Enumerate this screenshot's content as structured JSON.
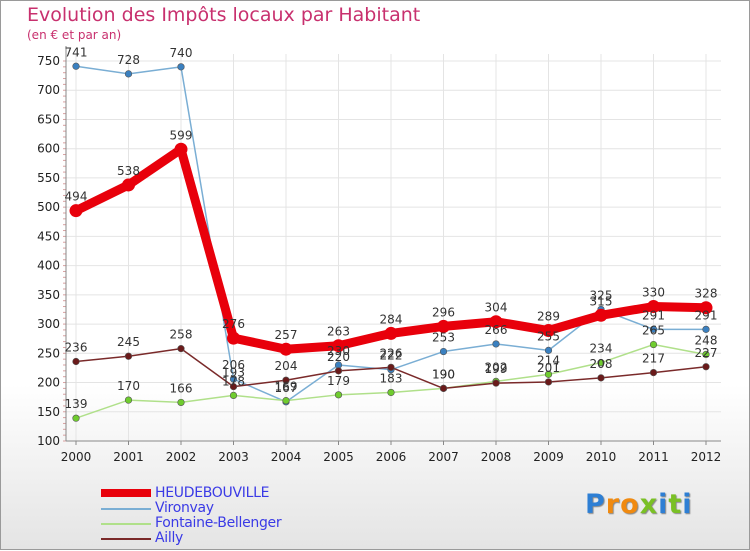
{
  "title": "Evolution des Impôts locaux par Habitant",
  "subtitle": "(en € et par an)",
  "logo": {
    "letters": [
      "P",
      "r",
      "o",
      "x",
      "i",
      "t",
      "i"
    ],
    "colors": [
      "#2e7fd4",
      "#f08a10",
      "#f08a10",
      "#7ac025",
      "#2e7fd4",
      "#7ac025",
      "#2e7fd4"
    ]
  },
  "chart_data": {
    "type": "line",
    "title": "Evolution des Impôts locaux par Habitant",
    "ylabel": "(en € et par an)",
    "ylim": [
      100,
      750
    ],
    "yticks": [
      100,
      150,
      200,
      250,
      300,
      350,
      400,
      450,
      500,
      550,
      600,
      650,
      700,
      750
    ],
    "x": [
      "2000",
      "2001",
      "2002",
      "2003",
      "2004",
      "2005",
      "2006",
      "2007",
      "2008",
      "2009",
      "2010",
      "2011",
      "2012"
    ],
    "series": [
      {
        "name": "HEUDEBOUVILLE",
        "color": "#e8000b",
        "point_color": "#e8000b",
        "values": [
          494,
          538,
          599,
          276,
          257,
          263,
          284,
          296,
          304,
          289,
          315,
          330,
          328
        ],
        "labels": [
          "494",
          "538",
          "599",
          "276",
          "257",
          "263",
          "284",
          "296",
          "304",
          "289",
          "315",
          "330",
          "328"
        ]
      },
      {
        "name": "Vironvay",
        "color": "#7aaed4",
        "point_color": "#3a80c0",
        "values": [
          741,
          728,
          740,
          206,
          167,
          230,
          222,
          253,
          266,
          255,
          325,
          291,
          291
        ],
        "labels": [
          "741",
          "728",
          "740",
          "206",
          "167",
          "230",
          "222",
          "253",
          "266",
          "255",
          "325",
          "291",
          "291"
        ]
      },
      {
        "name": "Fontaine-Bellenger",
        "color": "#b0e08a",
        "point_color": "#6fcc2e",
        "values": [
          139,
          170,
          166,
          178,
          169,
          179,
          183,
          190,
          202,
          214,
          234,
          265,
          248
        ],
        "labels": [
          "139",
          "170",
          "166",
          "178",
          "169",
          "179",
          "183",
          "190",
          "202",
          "214",
          "234",
          "265",
          "248"
        ]
      },
      {
        "name": "Ailly",
        "color": "#7a2a2a",
        "point_color": "#6a1a1a",
        "values": [
          236,
          245,
          258,
          193,
          204,
          220,
          226,
          190,
          199,
          201,
          208,
          217,
          227
        ],
        "labels": [
          "236",
          "245",
          "258",
          "193",
          "204",
          "220",
          "226",
          "190",
          "199",
          "201",
          "208",
          "217",
          "227"
        ]
      }
    ]
  }
}
